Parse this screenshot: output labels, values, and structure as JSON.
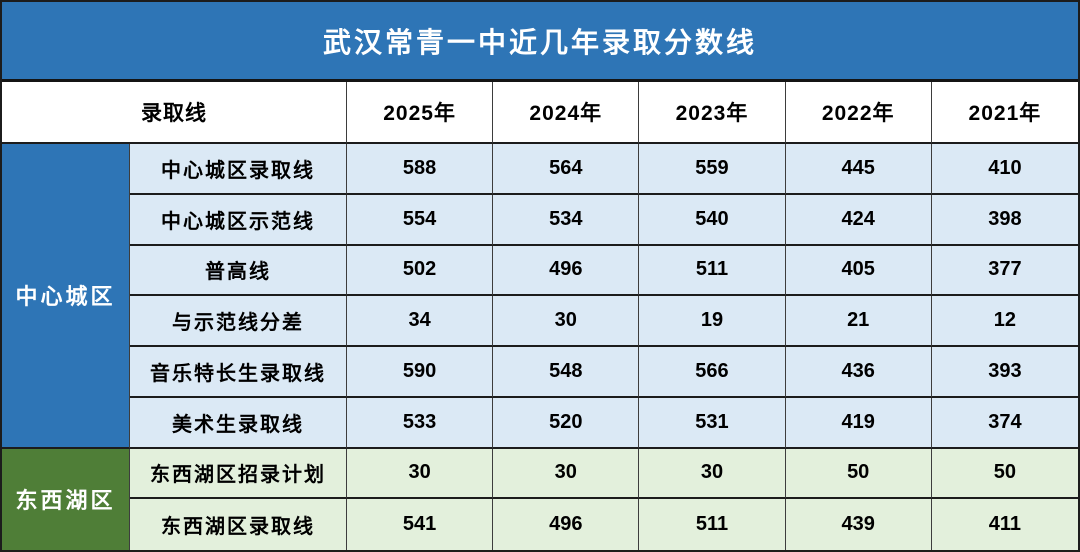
{
  "title": "武汉常青一中近几年录取分数线",
  "header": {
    "row_label": "录取线",
    "years": [
      "2025年",
      "2024年",
      "2023年",
      "2022年",
      "2021年"
    ]
  },
  "groups": [
    {
      "label": "中心城区"
    },
    {
      "label": "东西湖区"
    }
  ],
  "colors": {
    "title_bg": "#2E75B6",
    "title_text": "#FFFFFF",
    "group_blue_bg": "#2E75B6",
    "group_green_bg": "#4F7E37",
    "row_light_blue_bg": "#DBE9F5",
    "row_light_green_bg": "#E3F0DC",
    "header_bg": "#FFFFFF",
    "cell_text": "#000000",
    "grid_border": "#1C1C1C"
  },
  "chart_data": {
    "type": "table",
    "title": "武汉常青一中近几年录取分数线",
    "columns": [
      "录取线",
      "2025年",
      "2024年",
      "2023年",
      "2022年",
      "2021年"
    ],
    "row_groups": [
      "中心城区",
      "东西湖区"
    ],
    "rows": [
      {
        "group": "中心城区",
        "label": "中心城区录取线",
        "values": [
          588,
          564,
          559,
          445,
          410
        ]
      },
      {
        "group": "中心城区",
        "label": "中心城区示范线",
        "values": [
          554,
          534,
          540,
          424,
          398
        ]
      },
      {
        "group": "中心城区",
        "label": "普高线",
        "values": [
          502,
          496,
          511,
          405,
          377
        ]
      },
      {
        "group": "中心城区",
        "label": "与示范线分差",
        "values": [
          34,
          30,
          19,
          21,
          12
        ]
      },
      {
        "group": "中心城区",
        "label": "音乐特长生录取线",
        "values": [
          590,
          548,
          566,
          436,
          393
        ]
      },
      {
        "group": "中心城区",
        "label": "美术生录取线",
        "values": [
          533,
          520,
          531,
          419,
          374
        ]
      },
      {
        "group": "东西湖区",
        "label": "东西湖区招录计划",
        "values": [
          30,
          30,
          30,
          50,
          50
        ]
      },
      {
        "group": "东西湖区",
        "label": "东西湖区录取线",
        "values": [
          541,
          496,
          511,
          439,
          411
        ]
      }
    ]
  }
}
